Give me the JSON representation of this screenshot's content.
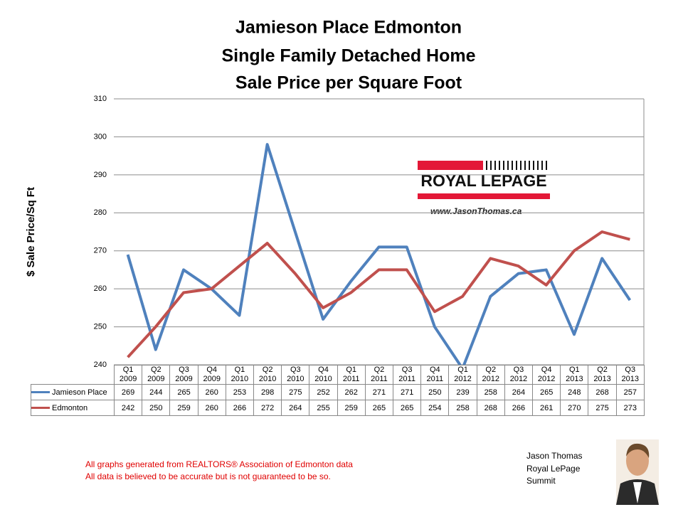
{
  "chart_data": {
    "type": "line",
    "title": [
      "Jamieson Place Edmonton",
      "Single Family Detached Home",
      "Sale Price per Square Foot"
    ],
    "y_label": "$ Sale Price/Sq Ft",
    "categories": [
      "Q1 2009",
      "Q2 2009",
      "Q3 2009",
      "Q4 2009",
      "Q1 2010",
      "Q2 2010",
      "Q3 2010",
      "Q4 2010",
      "Q1 2011",
      "Q2 2011",
      "Q3 2011",
      "Q4 2011",
      "Q1 2012",
      "Q2 2012",
      "Q3 2012",
      "Q4 2012",
      "Q1 2013",
      "Q2 2013",
      "Q3 2013"
    ],
    "series": [
      {
        "name": "Jamieson Place",
        "color": "#4f81bd",
        "values": [
          269,
          244,
          265,
          260,
          253,
          298,
          275,
          252,
          262,
          271,
          271,
          250,
          239,
          258,
          264,
          265,
          248,
          268,
          257
        ]
      },
      {
        "name": "Edmonton",
        "color": "#c0504d",
        "values": [
          242,
          250,
          259,
          260,
          266,
          272,
          264,
          255,
          259,
          265,
          265,
          254,
          258,
          268,
          266,
          261,
          270,
          275,
          273
        ]
      }
    ],
    "ylim": [
      240,
      310
    ],
    "yticks": [
      240,
      250,
      260,
      270,
      280,
      290,
      300,
      310
    ],
    "grid": true
  },
  "logo": {
    "brand": "ROYAL LEPAGE",
    "url": "www.JasonThomas.ca"
  },
  "footer": {
    "notes": [
      "All graphs generated from REALTORS® Association of Edmonton data",
      "All data is believed to be accurate but is not guaranteed to be so."
    ],
    "author": [
      "Jason Thomas",
      "Royal LePage",
      "Summit"
    ]
  }
}
